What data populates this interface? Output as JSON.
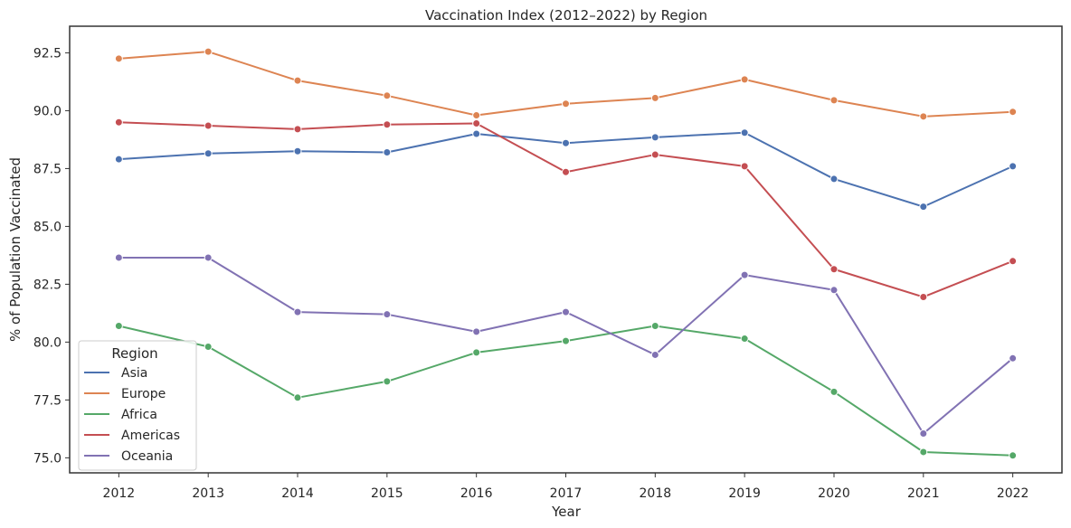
{
  "chart_data": {
    "type": "line",
    "title": "Vaccination Index (2012–2022) by Region",
    "xlabel": "Year",
    "ylabel": "% of Population Vaccinated",
    "x": [
      2012,
      2013,
      2014,
      2015,
      2016,
      2017,
      2018,
      2019,
      2020,
      2021,
      2022
    ],
    "x_ticks": [
      "2012",
      "2013",
      "2014",
      "2015",
      "2016",
      "2017",
      "2018",
      "2019",
      "2020",
      "2021",
      "2022"
    ],
    "y_ticks": [
      "75.0",
      "77.5",
      "80.0",
      "82.5",
      "85.0",
      "87.5",
      "90.0",
      "92.5"
    ],
    "ylim": [
      74.35,
      93.65
    ],
    "xlim": [
      2011.45,
      2022.55
    ],
    "grid": false,
    "legend": {
      "title": "Region",
      "placement": "lower-left"
    },
    "series": [
      {
        "name": "Asia",
        "color": "#4c72b0",
        "values": [
          87.9,
          88.15,
          88.25,
          88.2,
          89.0,
          88.6,
          88.85,
          89.05,
          87.05,
          85.85,
          87.6
        ]
      },
      {
        "name": "Europe",
        "color": "#dd8452",
        "values": [
          92.25,
          92.55,
          91.3,
          90.65,
          89.8,
          90.3,
          90.55,
          91.35,
          90.45,
          89.75,
          89.95
        ]
      },
      {
        "name": "Africa",
        "color": "#55a868",
        "values": [
          80.7,
          79.8,
          77.6,
          78.3,
          79.55,
          80.05,
          80.7,
          80.15,
          77.85,
          75.25,
          75.1
        ]
      },
      {
        "name": "Americas",
        "color": "#c44e52",
        "values": [
          89.5,
          89.35,
          89.2,
          89.4,
          89.45,
          87.35,
          88.1,
          87.6,
          83.15,
          81.95,
          83.5
        ]
      },
      {
        "name": "Oceania",
        "color": "#8172b3",
        "values": [
          83.65,
          83.65,
          81.3,
          81.2,
          80.45,
          81.3,
          79.45,
          82.9,
          82.25,
          76.05,
          79.3
        ]
      }
    ]
  }
}
